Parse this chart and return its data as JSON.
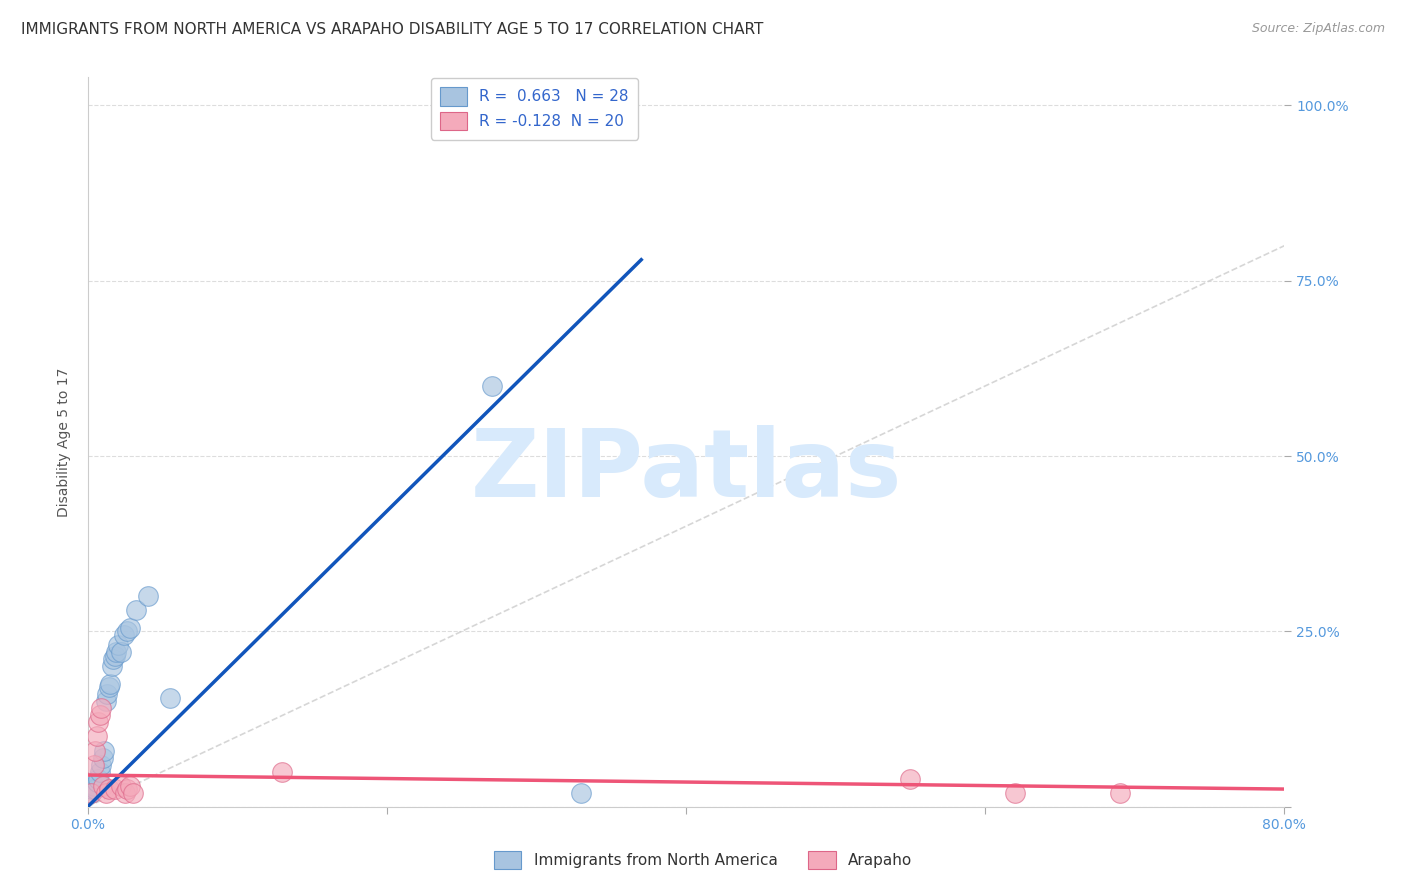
{
  "title": "IMMIGRANTS FROM NORTH AMERICA VS ARAPAHO DISABILITY AGE 5 TO 17 CORRELATION CHART",
  "source": "Source: ZipAtlas.com",
  "ylabel": "Disability Age 5 to 17",
  "xlim": [
    0.0,
    0.8
  ],
  "ylim": [
    0.0,
    1.04
  ],
  "blue_color": "#A8C4E0",
  "pink_color": "#F4AABB",
  "blue_line_color": "#1155BB",
  "pink_line_color": "#EE5577",
  "diag_line_color": "#CCCCCC",
  "r_blue": 0.663,
  "n_blue": 28,
  "r_pink": -0.128,
  "n_pink": 20,
  "watermark_color": "#D8EAFC",
  "watermark_text": "ZIPatlas",
  "background_color": "#FFFFFF",
  "grid_color": "#DDDDDD",
  "tick_color": "#5599DD",
  "blue_scatter_x": [
    0.002,
    0.003,
    0.004,
    0.005,
    0.006,
    0.007,
    0.008,
    0.009,
    0.01,
    0.011,
    0.012,
    0.013,
    0.014,
    0.015,
    0.016,
    0.017,
    0.018,
    0.019,
    0.02,
    0.022,
    0.024,
    0.026,
    0.028,
    0.032,
    0.04,
    0.055,
    0.27,
    0.33
  ],
  "blue_scatter_y": [
    0.02,
    0.025,
    0.03,
    0.025,
    0.035,
    0.04,
    0.05,
    0.06,
    0.07,
    0.08,
    0.15,
    0.16,
    0.17,
    0.175,
    0.2,
    0.21,
    0.215,
    0.22,
    0.23,
    0.22,
    0.245,
    0.25,
    0.255,
    0.28,
    0.3,
    0.155,
    0.6,
    0.02
  ],
  "pink_scatter_x": [
    0.002,
    0.004,
    0.005,
    0.006,
    0.007,
    0.008,
    0.009,
    0.01,
    0.012,
    0.014,
    0.018,
    0.022,
    0.025,
    0.026,
    0.028,
    0.03,
    0.13,
    0.55,
    0.62,
    0.69
  ],
  "pink_scatter_y": [
    0.02,
    0.06,
    0.08,
    0.1,
    0.12,
    0.13,
    0.14,
    0.03,
    0.02,
    0.025,
    0.025,
    0.03,
    0.02,
    0.025,
    0.03,
    0.02,
    0.05,
    0.04,
    0.02,
    0.02
  ],
  "blue_line_x0": 0.0,
  "blue_line_x1": 0.37,
  "blue_line_y0": 0.0,
  "blue_line_y1": 0.78,
  "pink_line_x0": 0.0,
  "pink_line_x1": 0.8,
  "pink_line_y0": 0.045,
  "pink_line_y1": 0.025,
  "title_fontsize": 11,
  "axis_label_fontsize": 10,
  "tick_fontsize": 10,
  "legend_fontsize": 11,
  "source_fontsize": 9
}
